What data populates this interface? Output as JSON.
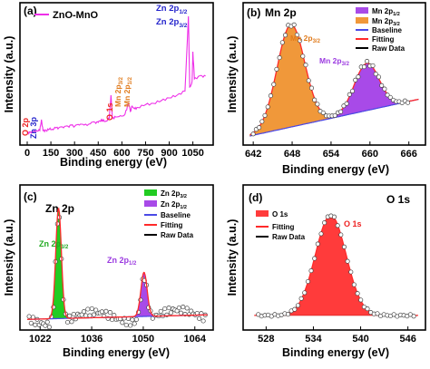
{
  "panels": [
    {
      "letter": "(a)",
      "title": "",
      "ylabel": "Intensity (a.u.)",
      "xlabel": "Binding energy (eV)",
      "legend": [
        "ZnO-MnO"
      ],
      "xticks": [
        "0",
        "150",
        "300",
        "450",
        "600",
        "750",
        "900",
        "1050"
      ],
      "annotations": [
        "Zn 2p1/2",
        "Zn 2p3/2",
        "O 1s",
        "Mn 2p1/2",
        "Mn 2p3/2",
        "O 2p",
        "Zn 3p"
      ]
    },
    {
      "letter": "(b)",
      "title": "Mn 2p",
      "ylabel": "Intensity (a.u.)",
      "xlabel": "Binding energy (eV)",
      "legend": [
        "Mn 2p1/2",
        "Mn 2p3/2",
        "Baseline",
        "Fitting",
        "Raw Data"
      ],
      "xticks": [
        "642",
        "648",
        "654",
        "660",
        "666"
      ],
      "annotations": [
        "Mn 2p3/2",
        "Mn 2p3/2"
      ]
    },
    {
      "letter": "(c)",
      "title": "Zn 2p",
      "ylabel": "Intensity (a.u.)",
      "xlabel": "Binding energy (eV)",
      "legend": [
        "Zn 2p3/2",
        "Zn 2p1/2",
        "Baseline",
        "Fitting",
        "Raw Data"
      ],
      "xticks": [
        "1022",
        "1036",
        "1050",
        "1064"
      ],
      "annotations": [
        "Zn 2p3/2",
        "Zn 2p1/2"
      ]
    },
    {
      "letter": "(d)",
      "title": "O 1s",
      "ylabel": "Intensity (a.u.)",
      "xlabel": "Binding energy (eV)",
      "legend": [
        "O 1s",
        "Fitting",
        "Raw Data"
      ],
      "xticks": [
        "528",
        "534",
        "540",
        "546"
      ],
      "annotations": [
        "O 1s"
      ]
    }
  ],
  "colors": {
    "survey": "#ee2ee8",
    "mn_p12": "#9b3ae0",
    "mn_p32": "#f0983a",
    "zn_p32": "#22cc22",
    "zn_p12": "#9b3ae0",
    "o1s": "#ff2a2a",
    "baseline": "#4a4ae6",
    "fitting": "#ff2a2a",
    "raw": "#000000"
  },
  "chart_data": [
    {
      "type": "line",
      "title": "",
      "xlabel": "Binding energy (eV)",
      "ylabel": "Intensity (a.u.)",
      "xlim": [
        0,
        1150
      ],
      "series": [
        {
          "name": "ZnO-MnO",
          "x": [
            0,
            20,
            40,
            60,
            80,
            90,
            100,
            120,
            140,
            160,
            180,
            200,
            230,
            260,
            280,
            300,
            330,
            360,
            400,
            430,
            450,
            470,
            480,
            500,
            520,
            531,
            540,
            560,
            590,
            620,
            642,
            654,
            665,
            680,
            700,
            750,
            800,
            850,
            900,
            950,
            1000,
            1022,
            1030,
            1045,
            1050,
            1060,
            1080,
            1110,
            1130
          ],
          "y": [
            0.02,
            0.03,
            0.03,
            0.04,
            0.04,
            0.12,
            0.04,
            0.04,
            0.05,
            0.05,
            0.06,
            0.06,
            0.06,
            0.07,
            0.08,
            0.07,
            0.08,
            0.08,
            0.09,
            0.1,
            0.1,
            0.12,
            0.11,
            0.11,
            0.13,
            0.3,
            0.13,
            0.14,
            0.15,
            0.16,
            0.24,
            0.18,
            0.22,
            0.2,
            0.21,
            0.23,
            0.24,
            0.26,
            0.28,
            0.3,
            0.33,
            0.88,
            0.36,
            0.4,
            0.62,
            0.42,
            0.43,
            0.44,
            0.44
          ]
        }
      ]
    },
    {
      "type": "line",
      "title": "Mn 2p",
      "xlabel": "Binding energy (eV)",
      "ylabel": "Intensity (a.u.)",
      "xlim": [
        641,
        668
      ],
      "series": [
        {
          "name": "Mn 2p3/2",
          "peak_center": 647.8,
          "peak_height": 0.78,
          "fwhm": 5.0
        },
        {
          "name": "Mn 2p1/2",
          "peak_center": 659.5,
          "peak_height": 0.36,
          "fwhm": 4.5
        },
        {
          "name": "Baseline",
          "x": [
            641,
            668
          ],
          "y": [
            0.05,
            0.34
          ]
        }
      ]
    },
    {
      "type": "line",
      "title": "Zn 2p",
      "xlabel": "Binding energy (eV)",
      "ylabel": "Intensity (a.u.)",
      "xlim": [
        1018,
        1068
      ],
      "series": [
        {
          "name": "Zn 2p3/2",
          "peak_center": 1027,
          "peak_height": 0.95,
          "fwhm": 1.8
        },
        {
          "name": "Zn 2p1/2",
          "peak_center": 1050.2,
          "peak_height": 0.38,
          "fwhm": 2.0
        },
        {
          "name": "Baseline",
          "x": [
            1018,
            1068
          ],
          "y": [
            0.06,
            0.1
          ]
        }
      ]
    },
    {
      "type": "line",
      "title": "O 1s",
      "xlabel": "Binding energy (eV)",
      "ylabel": "Intensity (a.u.)",
      "xlim": [
        526,
        548
      ],
      "series": [
        {
          "name": "O 1s",
          "peak_center": 536.2,
          "peak_height": 0.82,
          "fwhm": 4.6
        },
        {
          "name": "Baseline",
          "x": [
            526,
            548
          ],
          "y": [
            0.03,
            0.03
          ]
        }
      ]
    }
  ]
}
